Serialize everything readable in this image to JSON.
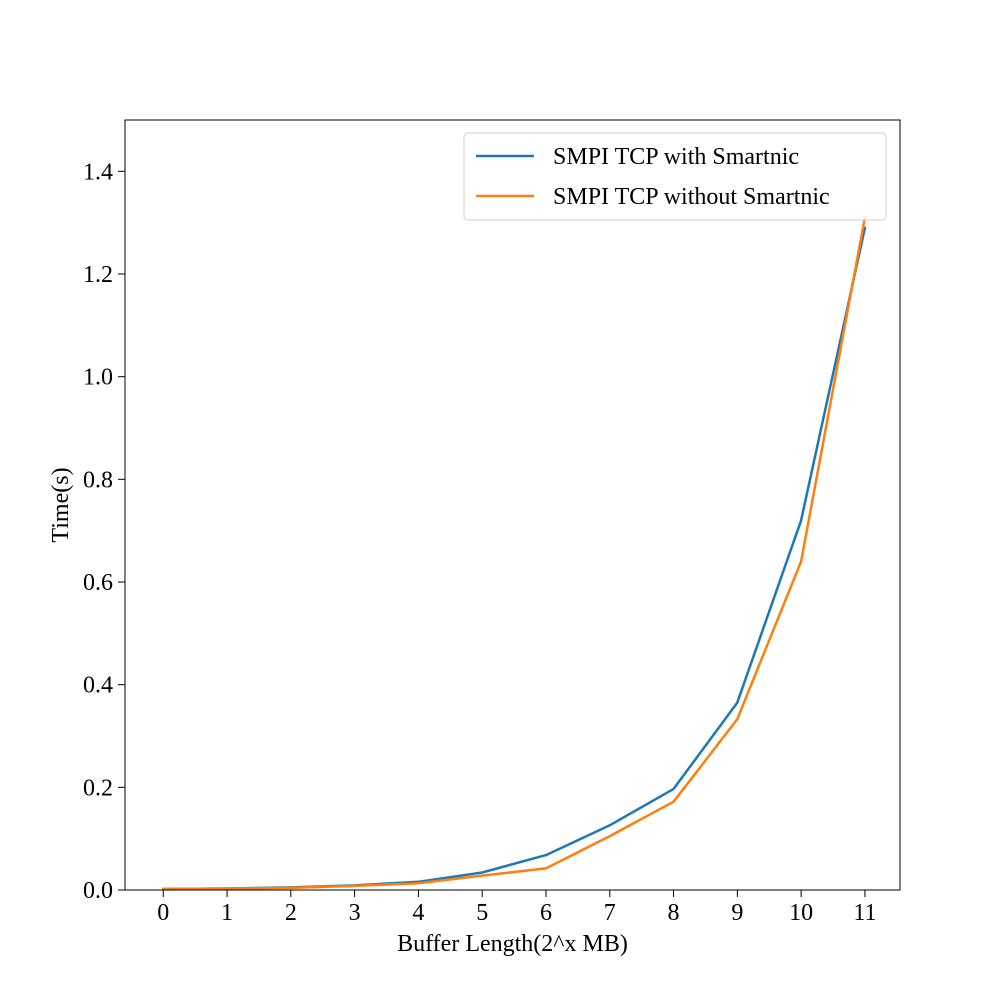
{
  "chart_data": {
    "type": "line",
    "title": "",
    "xlabel": "Buffer Length(2^x MB)",
    "ylabel": "Time(s)",
    "x": [
      0,
      1,
      2,
      3,
      4,
      5,
      6,
      7,
      8,
      9,
      10,
      11
    ],
    "xticks": [
      "0",
      "1",
      "2",
      "3",
      "4",
      "5",
      "6",
      "7",
      "8",
      "9",
      "10",
      "11"
    ],
    "yticks": [
      "0.0",
      "0.2",
      "0.4",
      "0.6",
      "0.8",
      "1.0",
      "1.2",
      "1.4"
    ],
    "xlim": [
      -0.6,
      11.55
    ],
    "ylim": [
      0,
      1.5
    ],
    "grid": false,
    "legend_position": "upper right",
    "series": [
      {
        "name": "SMPI TCP with Smartnic",
        "color": "#1f77b4",
        "values": [
          0.002,
          0.003,
          0.005,
          0.009,
          0.016,
          0.034,
          0.068,
          0.126,
          0.197,
          0.365,
          0.72,
          1.29
        ]
      },
      {
        "name": "SMPI TCP without Smartnic",
        "color": "#ff7f0e",
        "values": [
          0.002,
          0.003,
          0.004,
          0.008,
          0.013,
          0.028,
          0.042,
          0.105,
          0.172,
          0.333,
          0.64,
          1.31
        ]
      }
    ]
  }
}
